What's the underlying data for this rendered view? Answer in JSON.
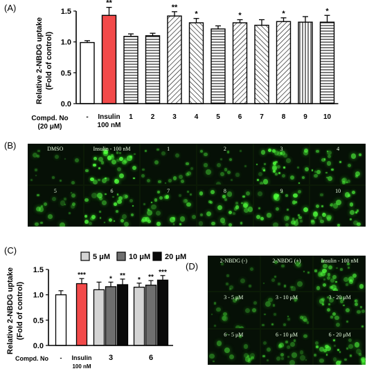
{
  "panels": {
    "a": "(A)",
    "b": "(B)",
    "c": "(C)",
    "d": "(D)"
  },
  "chart_data": [
    {
      "type": "bar",
      "panel": "A",
      "ylabel": "Relative 2-NBDG uptake\n(Fold of control)",
      "xlabel": "Compd. No\n(20 μM)",
      "ylim": [
        0,
        1.5
      ],
      "yticks": [
        "0.0",
        "0.5",
        "1.0",
        "1.5"
      ],
      "categories": [
        "-",
        "Insulin\n100 nM",
        "1",
        "2",
        "3",
        "4",
        "5",
        "6",
        "7",
        "8",
        "9",
        "10"
      ],
      "values": [
        0.99,
        1.43,
        1.09,
        1.1,
        1.42,
        1.31,
        1.21,
        1.31,
        1.27,
        1.33,
        1.32,
        1.32
      ],
      "errors": [
        0.03,
        0.13,
        0.04,
        0.04,
        0.07,
        0.07,
        0.05,
        0.05,
        0.09,
        0.06,
        0.09,
        0.11
      ],
      "significance": [
        "",
        "**",
        "",
        "",
        "**",
        "*",
        "",
        "*",
        "",
        "*",
        "",
        "*"
      ],
      "fills": [
        "white",
        "#f24a4a",
        "hlines",
        "hlines",
        "diag-r",
        "diag-l",
        "hlines",
        "diag-r",
        "diag-l",
        "diag-r",
        "vlines",
        "hlines"
      ]
    },
    {
      "type": "bar",
      "panel": "C",
      "ylabel": "Relative 2-NBDG uptake\n(Fold of control)",
      "xlabel": "Compd.  No",
      "ylim": [
        0,
        1.5
      ],
      "yticks": [
        "0.0",
        "0.5",
        "1.0",
        "1.5"
      ],
      "legend": [
        {
          "label": "5 μM",
          "color": "#d4d4d4"
        },
        {
          "label": "10 μM",
          "color": "#6f6f6f"
        },
        {
          "label": "20 μM",
          "color": "#0a0a0a"
        }
      ],
      "groups": [
        {
          "label": "-",
          "bars": [
            {
              "value": 1.0,
              "error": 0.08,
              "color": "#ffffff",
              "sig": ""
            }
          ]
        },
        {
          "label": "Insulin\n100 nM",
          "bars": [
            {
              "value": 1.22,
              "error": 0.1,
              "color": "#f24a4a",
              "sig": "***"
            }
          ]
        },
        {
          "label": "3",
          "bars": [
            {
              "value": 1.1,
              "error": 0.15,
              "color": "#d4d4d4",
              "sig": ""
            },
            {
              "value": 1.16,
              "error": 0.09,
              "color": "#6f6f6f",
              "sig": "*"
            },
            {
              "value": 1.2,
              "error": 0.11,
              "color": "#0a0a0a",
              "sig": "**"
            }
          ]
        },
        {
          "label": "6",
          "bars": [
            {
              "value": 1.15,
              "error": 0.08,
              "color": "#d4d4d4",
              "sig": "*"
            },
            {
              "value": 1.19,
              "error": 0.09,
              "color": "#6f6f6f",
              "sig": "**"
            },
            {
              "value": 1.29,
              "error": 0.09,
              "color": "#0a0a0a",
              "sig": "***"
            }
          ]
        }
      ]
    }
  ],
  "micrographs_b": [
    "DMSO",
    "Insulin - 100 nM",
    "1",
    "2",
    "3",
    "4",
    "5",
    "6",
    "7",
    "8",
    "9",
    "10"
  ],
  "micrographs_d": [
    "2-NBDG (-)",
    "2-NBDG (+)",
    "Insulin - 100 nM",
    "3 - 5 μM",
    "3 - 10 μM",
    "3 - 20 μM",
    "6 - 5 μM",
    "6 - 10 μM",
    "6 - 20 μM"
  ],
  "micrograph_brightness_b": [
    0.15,
    0.75,
    0.3,
    0.25,
    0.7,
    0.5,
    0.3,
    0.6,
    0.55,
    0.55,
    0.65,
    0.6
  ],
  "micrograph_brightness_d": [
    0.05,
    0.2,
    0.6,
    0.2,
    0.25,
    0.45,
    0.25,
    0.35,
    0.55
  ],
  "colors": {
    "insulin": "#f24a4a",
    "fluorescence": "#3cff3c"
  }
}
